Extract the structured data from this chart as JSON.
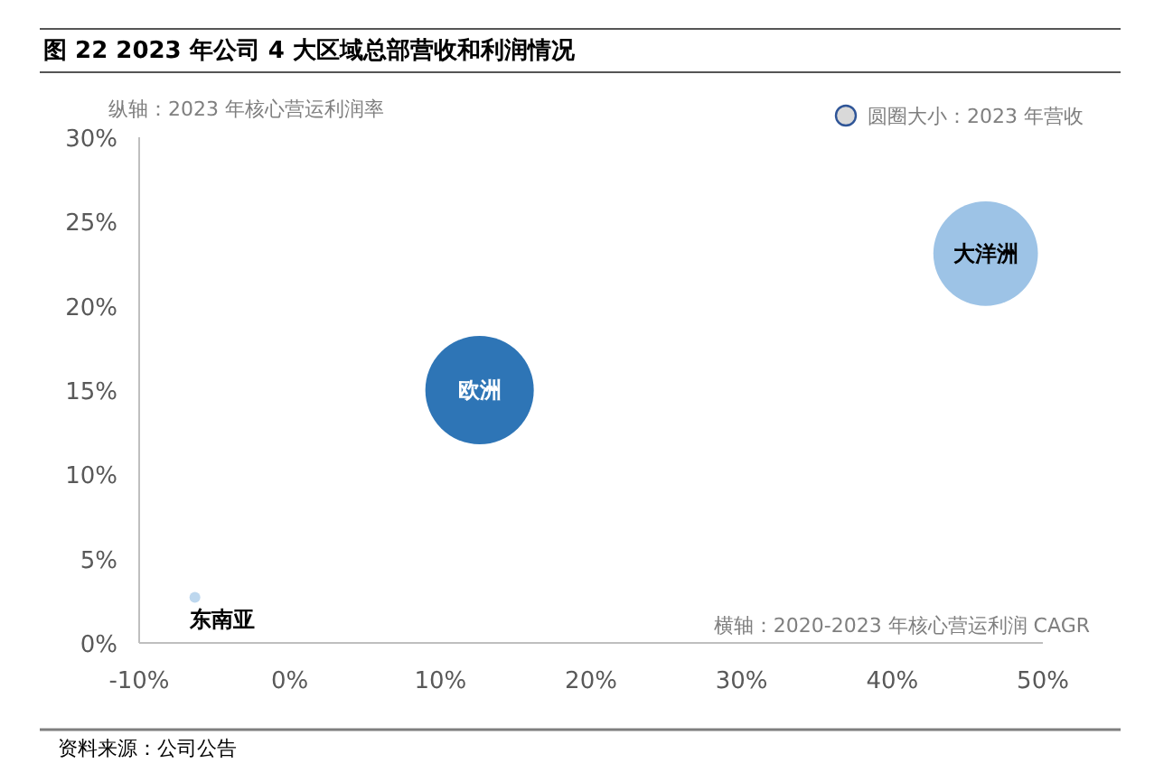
{
  "chart_data": {
    "type": "bubble",
    "title": "图 22  2023 年公司 4 大区域总部营收和利润情况",
    "xlabel": "横轴：2020-2023 年核心营运利润 CAGR",
    "ylabel": "纵轴：2023 年核心营运利润率",
    "xlim": [
      -10,
      50
    ],
    "xticks": [
      {
        "value": -10,
        "label": "-10%"
      },
      {
        "value": 0,
        "label": "0%"
      },
      {
        "value": 10,
        "label": "10%"
      },
      {
        "value": 20,
        "label": "20%"
      },
      {
        "value": 30,
        "label": "30%"
      },
      {
        "value": 40,
        "label": "40%"
      },
      {
        "value": 50,
        "label": "50%"
      }
    ],
    "ylim": [
      0,
      30
    ],
    "yticks": [
      {
        "value": 0,
        "label": "0%"
      },
      {
        "value": 5,
        "label": "5%"
      },
      {
        "value": 10,
        "label": "10%"
      },
      {
        "value": 15,
        "label": "15%"
      },
      {
        "value": 20,
        "label": "20%"
      },
      {
        "value": 25,
        "label": "25%"
      },
      {
        "value": 30,
        "label": "30%"
      }
    ],
    "series": [
      {
        "name": "东南亚",
        "color": "#bdd7ee",
        "x": [
          -6.3
        ],
        "values": [
          2.7
        ],
        "sizes": [
          0.01
        ]
      },
      {
        "name": "欧洲",
        "color": "#2e75b6",
        "x": [
          12.6
        ],
        "values": [
          15
        ],
        "sizes": [
          1
        ]
      },
      {
        "name": "大洋洲",
        "color": "#9dc3e6",
        "x": [
          46.2
        ],
        "values": [
          23.1
        ],
        "sizes": [
          0.93
        ]
      }
    ],
    "grid": false,
    "annotations": [
      "圆圈大小：2023 年营收",
      "资料来源：公司公告"
    ]
  }
}
